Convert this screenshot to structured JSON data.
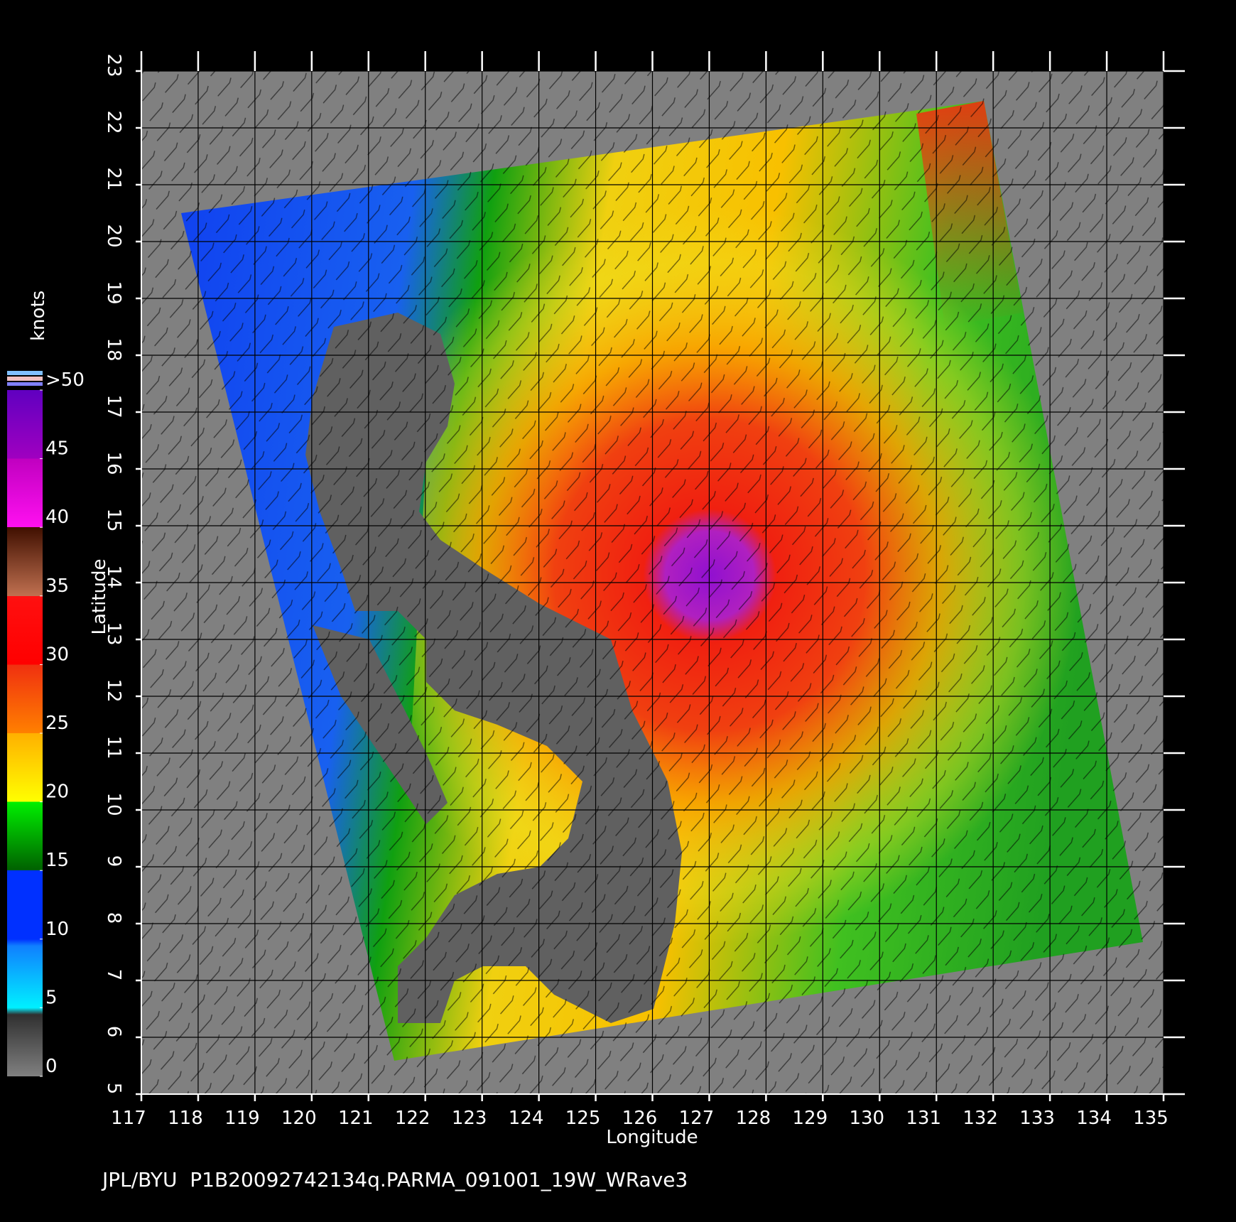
{
  "map": {
    "xlabel": "Longitude",
    "ylabel": "Latitude",
    "xlim": [
      117,
      135
    ],
    "ylim": [
      5,
      23
    ],
    "xticks": [
      117,
      118,
      119,
      120,
      121,
      122,
      123,
      124,
      125,
      126,
      127,
      128,
      129,
      130,
      131,
      132,
      133,
      134,
      135
    ],
    "yticks": [
      5,
      6,
      7,
      8,
      9,
      10,
      11,
      12,
      13,
      14,
      15,
      16,
      17,
      18,
      19,
      20,
      21,
      22,
      23
    ],
    "colorbar": {
      "title": "knots",
      "lim": [
        0,
        50
      ],
      "ticks": [
        0,
        5,
        10,
        15,
        20,
        25,
        30,
        35,
        40,
        45,
        {
          "value": 50,
          "label": ">50"
        }
      ]
    },
    "footer": "JPL/BYU  P1B20092742134q.PARMA_091001_19W_WRave3"
  }
}
